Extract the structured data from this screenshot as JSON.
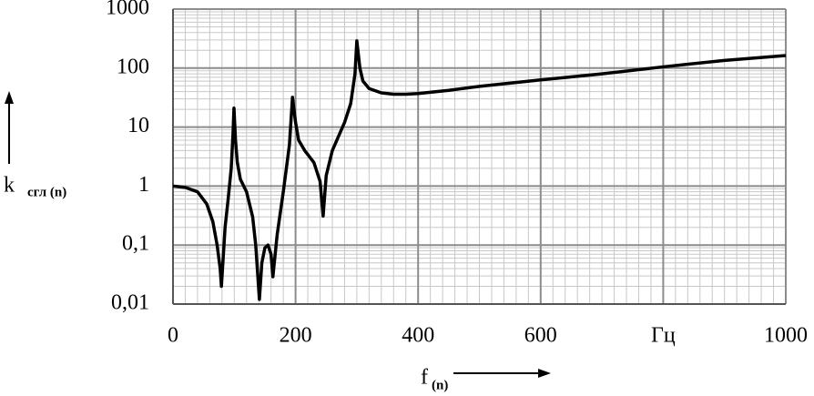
{
  "chart_data": {
    "type": "line",
    "xlabel": "f",
    "xlabel_sub": "(n)",
    "ylabel": "k",
    "ylabel_sub": "сгл (n)",
    "x": [
      0,
      20,
      40,
      55,
      65,
      72,
      77,
      79,
      85,
      90,
      95,
      98,
      99.5,
      102,
      105,
      110,
      120,
      130,
      135,
      141,
      145,
      150,
      155,
      160,
      163,
      170,
      180,
      190,
      195,
      200,
      205,
      215,
      230,
      240,
      245,
      250,
      260,
      280,
      290,
      297,
      300,
      305,
      310,
      320,
      340,
      360,
      380,
      400,
      450,
      500,
      600,
      700,
      800,
      900,
      1000
    ],
    "series": [
      {
        "color": "#000000",
        "values": [
          1,
          0.95,
          0.8,
          0.5,
          0.25,
          0.1,
          0.04,
          0.02,
          0.2,
          0.6,
          2,
          8,
          21,
          6,
          2.5,
          1.3,
          0.8,
          0.3,
          0.1,
          0.012,
          0.05,
          0.09,
          0.1,
          0.07,
          0.029,
          0.15,
          0.8,
          5,
          32,
          12,
          6,
          4,
          2.5,
          1.2,
          0.31,
          1.5,
          4,
          12,
          25,
          80,
          290,
          100,
          60,
          45,
          38,
          36,
          36,
          37,
          42,
          49,
          63,
          80,
          105,
          135,
          163
        ]
      }
    ],
    "xlim": [
      0,
      1000
    ],
    "xticks": [
      0,
      200,
      400,
      600,
      {
        "value": 800,
        "label": "Гц"
      },
      1000
    ],
    "ylim": [
      0.01,
      1000
    ],
    "yticks": [
      {
        "value": 0.01,
        "label": "0,01"
      },
      {
        "value": 0.1,
        "label": "0,1"
      },
      1,
      10,
      100,
      1000
    ],
    "log_y": true,
    "grid": true,
    "minor_grid": true
  }
}
